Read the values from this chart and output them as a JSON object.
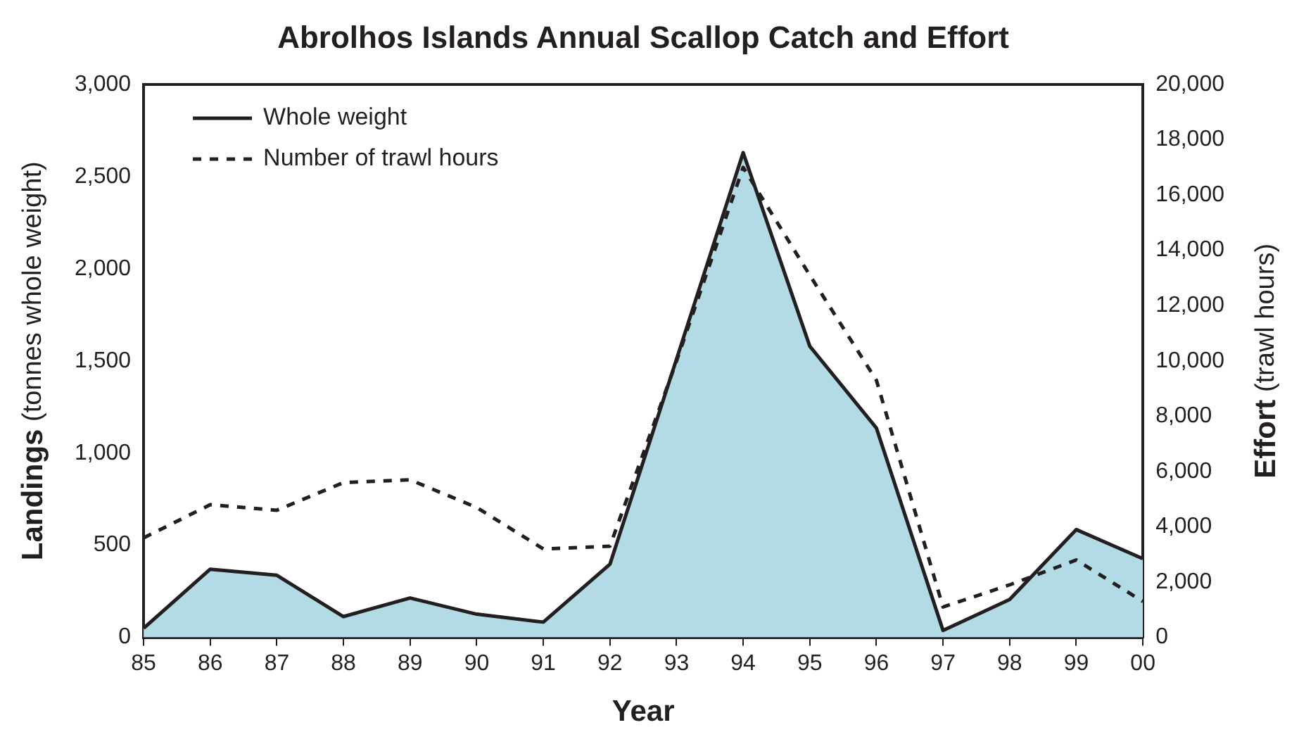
{
  "chart_data": {
    "type": "area",
    "title": "Abrolhos Islands Annual Scallop Catch and Effort",
    "xlabel": "Year",
    "ylabel": "Landings (tonnes whole weight)",
    "y2label": "Effort (trawl hours)",
    "categories": [
      "85",
      "86",
      "87",
      "88",
      "89",
      "90",
      "91",
      "92",
      "93",
      "94",
      "95",
      "96",
      "97",
      "98",
      "99",
      "00"
    ],
    "series": [
      {
        "name": "Whole weight",
        "color": "#b2dbe6",
        "line_style": "solid",
        "values": [
          50,
          370,
          337,
          113,
          214,
          126,
          83,
          397,
          1510,
          2630,
          1580,
          1136,
          38,
          206,
          585,
          427
        ]
      },
      {
        "name": "Number of trawl hours",
        "type": "line",
        "axis": "y2",
        "color": "#231f20",
        "line_style": "dashed",
        "values": [
          3600,
          4800,
          4600,
          5600,
          5700,
          4700,
          3200,
          3300,
          10000,
          17000,
          13100,
          9300,
          1100,
          1900,
          2800,
          1300
        ]
      }
    ],
    "ylim": [
      0,
      3000
    ],
    "yticks": [
      0,
      {
        "value": 500,
        "label": "500"
      },
      {
        "value": 1000,
        "label": "1,000"
      },
      {
        "value": 1500,
        "label": "1,500"
      },
      {
        "value": 2000,
        "label": "2,000"
      },
      {
        "value": 2500,
        "label": "2,500"
      },
      {
        "value": 3000,
        "label": "3,000"
      }
    ],
    "y2lim": [
      0,
      20000
    ],
    "y2ticks": [
      0,
      {
        "value": 2000,
        "label": "2,000"
      },
      {
        "value": 4000,
        "label": "4,000"
      },
      {
        "value": 6000,
        "label": "6,000"
      },
      {
        "value": 8000,
        "label": "8,000"
      },
      {
        "value": 10000,
        "label": "10,000"
      },
      {
        "value": 12000,
        "label": "12,000"
      },
      {
        "value": 14000,
        "label": "14,000"
      },
      {
        "value": 16000,
        "label": "16,000"
      },
      {
        "value": 18000,
        "label": "18,000"
      },
      {
        "value": 20000,
        "label": "20,000"
      }
    ],
    "grid": false,
    "legend": "top left",
    "marker": "none"
  }
}
